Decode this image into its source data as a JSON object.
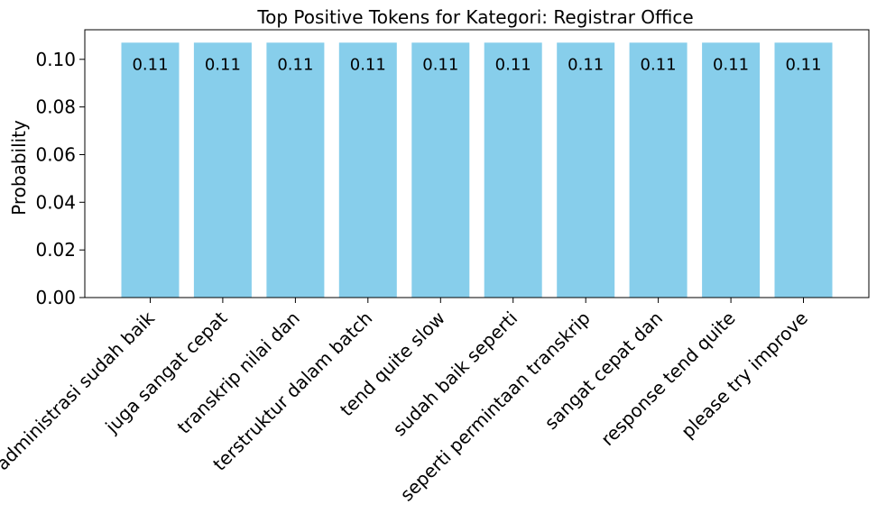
{
  "chart_data": {
    "type": "bar",
    "title": "Top Positive Tokens for Kategori: Registrar Office",
    "xlabel": "",
    "ylabel": "Probability",
    "categories": [
      "administrasi sudah baik",
      "juga sangat cepat",
      "transkrip nilai dan",
      "terstruktur dalam batch",
      "tend quite slow",
      "sudah baik seperti",
      "seperti permintaan transkrip",
      "sangat cepat dan",
      "response tend quite",
      "please try improve"
    ],
    "values": [
      0.107,
      0.107,
      0.107,
      0.107,
      0.107,
      0.107,
      0.107,
      0.107,
      0.107,
      0.107
    ],
    "data_labels": [
      "0.11",
      "0.11",
      "0.11",
      "0.11",
      "0.11",
      "0.11",
      "0.11",
      "0.11",
      "0.11",
      "0.11"
    ],
    "ylim": [
      0,
      0.1124
    ],
    "yticks": [
      0.0,
      0.02,
      0.04,
      0.06,
      0.08,
      0.1
    ],
    "ytick_labels": [
      "0.00",
      "0.02",
      "0.04",
      "0.06",
      "0.08",
      "0.10"
    ],
    "bar_color": "#87ceeb",
    "grid": false,
    "xtick_rotation_deg": 45
  }
}
